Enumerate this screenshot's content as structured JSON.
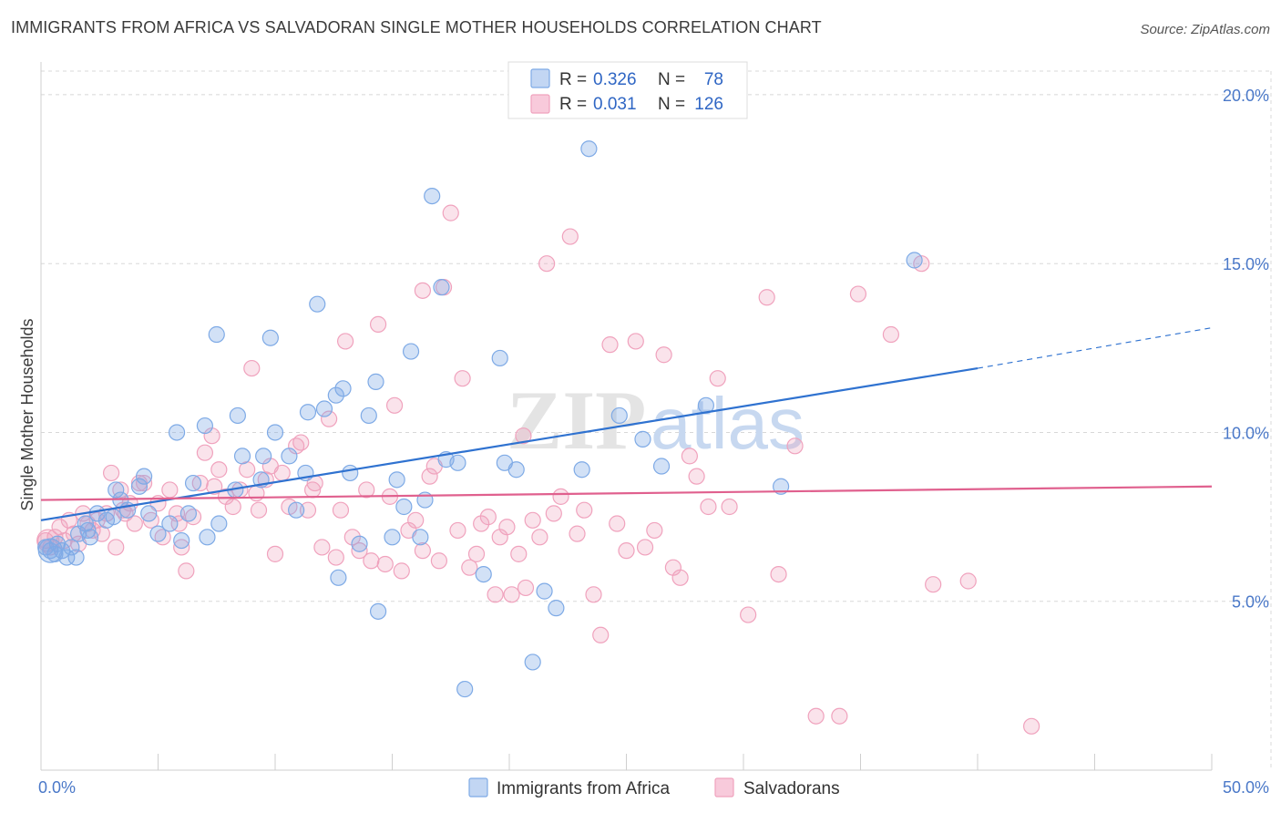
{
  "title": "IMMIGRANTS FROM AFRICA VS SALVADORAN SINGLE MOTHER HOUSEHOLDS CORRELATION CHART",
  "source": "Source: ZipAtlas.com",
  "watermark": {
    "left": "ZIP",
    "right": "atlas"
  },
  "colors": {
    "blue": "#7eaae6",
    "blue_line": "#2f72d0",
    "pink": "#f0a2bd",
    "pink_line": "#e0608e",
    "tick": "#4a78c8",
    "grid": "#d8d8d8"
  },
  "legend": {
    "r_label": "R =",
    "n_label": "N =",
    "rows": [
      {
        "r": "0.326",
        "n": "78"
      },
      {
        "r": "0.031",
        "n": "126"
      }
    ]
  },
  "chart_data": {
    "type": "scatter",
    "title": "IMMIGRANTS FROM AFRICA VS SALVADORAN SINGLE MOTHER HOUSEHOLDS CORRELATION CHART",
    "xlabel": "",
    "ylabel": "Single Mother Households",
    "xlim": [
      0,
      50
    ],
    "ylim": [
      0,
      20.7
    ],
    "x_tick_labels": [
      "0.0%",
      "50.0%"
    ],
    "y_ticks": [
      5,
      10,
      15,
      20
    ],
    "y_tick_labels": [
      "5.0%",
      "10.0%",
      "15.0%",
      "20.0%"
    ],
    "grid": true,
    "legend_position": "top-center",
    "series": [
      {
        "name": "Immigrants from Africa",
        "color": "#7eaae6",
        "r": 0.326,
        "n": 78,
        "trend": {
          "x0": 0,
          "y0": 7.4,
          "x1": 40,
          "y1": 11.9,
          "dash_to_x": 50,
          "dash_to_y": 13.1
        },
        "points": [
          [
            0.2,
            6.6
          ],
          [
            0.4,
            6.5
          ],
          [
            0.6,
            6.4
          ],
          [
            0.9,
            6.5
          ],
          [
            1.1,
            6.3
          ],
          [
            1.3,
            6.6
          ],
          [
            1.6,
            7.0
          ],
          [
            1.9,
            7.3
          ],
          [
            2.1,
            6.9
          ],
          [
            2.4,
            7.6
          ],
          [
            2.8,
            7.4
          ],
          [
            3.1,
            7.5
          ],
          [
            3.4,
            8.0
          ],
          [
            3.7,
            7.7
          ],
          [
            4.2,
            8.4
          ],
          [
            4.4,
            8.7
          ],
          [
            5.0,
            7.0
          ],
          [
            5.5,
            7.3
          ],
          [
            6.0,
            6.8
          ],
          [
            6.3,
            7.6
          ],
          [
            6.5,
            8.5
          ],
          [
            7.1,
            6.9
          ],
          [
            7.6,
            7.3
          ],
          [
            8.3,
            8.3
          ],
          [
            8.6,
            9.3
          ],
          [
            9.4,
            8.6
          ],
          [
            9.5,
            9.3
          ],
          [
            10.0,
            10.0
          ],
          [
            10.6,
            9.3
          ],
          [
            11.3,
            8.8
          ],
          [
            11.4,
            10.6
          ],
          [
            12.1,
            10.7
          ],
          [
            12.6,
            11.1
          ],
          [
            12.9,
            11.3
          ],
          [
            13.2,
            8.8
          ],
          [
            14.0,
            10.5
          ],
          [
            14.3,
            11.5
          ],
          [
            15.0,
            6.9
          ],
          [
            15.2,
            8.6
          ],
          [
            15.5,
            7.8
          ],
          [
            15.8,
            12.4
          ],
          [
            16.2,
            6.9
          ],
          [
            16.4,
            8.0
          ],
          [
            16.7,
            17.0
          ],
          [
            17.1,
            14.3
          ],
          [
            17.3,
            9.2
          ],
          [
            17.8,
            9.1
          ],
          [
            18.9,
            5.8
          ],
          [
            19.6,
            12.2
          ],
          [
            19.8,
            9.1
          ],
          [
            20.3,
            8.9
          ],
          [
            21.0,
            3.2
          ],
          [
            21.5,
            5.3
          ],
          [
            22.0,
            4.8
          ],
          [
            23.1,
            8.9
          ],
          [
            23.4,
            18.4
          ],
          [
            24.7,
            10.5
          ],
          [
            25.7,
            9.8
          ],
          [
            26.5,
            9.0
          ],
          [
            28.4,
            10.8
          ],
          [
            31.6,
            8.4
          ],
          [
            37.3,
            15.1
          ],
          [
            18.1,
            2.4
          ],
          [
            14.4,
            4.7
          ],
          [
            12.7,
            5.7
          ],
          [
            11.8,
            13.8
          ],
          [
            7.5,
            12.9
          ],
          [
            9.8,
            12.8
          ],
          [
            7.0,
            10.2
          ],
          [
            8.4,
            10.5
          ],
          [
            5.8,
            10.0
          ],
          [
            3.2,
            8.3
          ],
          [
            2.0,
            7.1
          ],
          [
            4.6,
            7.6
          ],
          [
            1.5,
            6.3
          ],
          [
            0.7,
            6.7
          ],
          [
            10.9,
            7.7
          ],
          [
            13.6,
            6.7
          ]
        ]
      },
      {
        "name": "Salvadorans",
        "color": "#f0a2bd",
        "r": 0.031,
        "n": 126,
        "trend": {
          "x0": 0,
          "y0": 8.0,
          "x1": 50,
          "y1": 8.4
        },
        "points": [
          [
            0.2,
            6.8
          ],
          [
            0.4,
            6.6
          ],
          [
            0.6,
            6.9
          ],
          [
            0.8,
            7.2
          ],
          [
            1.0,
            6.8
          ],
          [
            1.2,
            7.4
          ],
          [
            1.4,
            7.0
          ],
          [
            1.6,
            6.7
          ],
          [
            1.8,
            7.6
          ],
          [
            2.0,
            7.3
          ],
          [
            2.2,
            7.1
          ],
          [
            2.4,
            7.4
          ],
          [
            2.6,
            7.0
          ],
          [
            2.8,
            7.6
          ],
          [
            3.0,
            8.8
          ],
          [
            3.2,
            6.6
          ],
          [
            3.4,
            8.3
          ],
          [
            3.6,
            7.6
          ],
          [
            3.8,
            7.9
          ],
          [
            4.0,
            7.3
          ],
          [
            4.2,
            8.5
          ],
          [
            4.4,
            8.5
          ],
          [
            4.7,
            7.4
          ],
          [
            5.0,
            7.9
          ],
          [
            5.2,
            6.9
          ],
          [
            5.5,
            8.3
          ],
          [
            5.8,
            7.6
          ],
          [
            6.0,
            6.6
          ],
          [
            6.2,
            5.9
          ],
          [
            6.5,
            7.5
          ],
          [
            6.8,
            8.5
          ],
          [
            7.0,
            9.4
          ],
          [
            7.3,
            9.9
          ],
          [
            7.6,
            8.9
          ],
          [
            7.9,
            8.1
          ],
          [
            8.2,
            7.8
          ],
          [
            8.5,
            8.3
          ],
          [
            8.8,
            8.9
          ],
          [
            9.0,
            11.9
          ],
          [
            9.3,
            7.7
          ],
          [
            9.6,
            8.6
          ],
          [
            9.8,
            9.0
          ],
          [
            10.0,
            6.4
          ],
          [
            10.3,
            8.8
          ],
          [
            10.6,
            7.8
          ],
          [
            10.9,
            9.6
          ],
          [
            11.1,
            9.7
          ],
          [
            11.4,
            7.7
          ],
          [
            11.7,
            8.5
          ],
          [
            12.0,
            6.6
          ],
          [
            12.3,
            10.4
          ],
          [
            12.6,
            6.3
          ],
          [
            12.8,
            7.7
          ],
          [
            13.0,
            12.7
          ],
          [
            13.3,
            6.9
          ],
          [
            13.6,
            6.5
          ],
          [
            13.9,
            8.3
          ],
          [
            14.1,
            6.2
          ],
          [
            14.4,
            13.2
          ],
          [
            14.7,
            6.1
          ],
          [
            14.9,
            8.1
          ],
          [
            15.1,
            10.8
          ],
          [
            15.4,
            5.9
          ],
          [
            15.7,
            7.1
          ],
          [
            16.0,
            7.4
          ],
          [
            16.3,
            6.5
          ],
          [
            16.6,
            8.7
          ],
          [
            16.8,
            9.0
          ],
          [
            17.0,
            6.2
          ],
          [
            17.2,
            14.3
          ],
          [
            17.5,
            16.5
          ],
          [
            17.8,
            7.1
          ],
          [
            18.0,
            11.6
          ],
          [
            18.3,
            6.0
          ],
          [
            18.6,
            6.4
          ],
          [
            18.8,
            7.3
          ],
          [
            19.1,
            7.5
          ],
          [
            19.4,
            5.2
          ],
          [
            19.6,
            6.9
          ],
          [
            19.9,
            7.2
          ],
          [
            20.1,
            5.2
          ],
          [
            20.4,
            6.4
          ],
          [
            20.7,
            5.4
          ],
          [
            21.0,
            7.4
          ],
          [
            21.3,
            6.9
          ],
          [
            21.6,
            15.0
          ],
          [
            21.9,
            7.6
          ],
          [
            22.2,
            8.1
          ],
          [
            22.6,
            15.8
          ],
          [
            22.9,
            7.0
          ],
          [
            23.2,
            7.7
          ],
          [
            23.6,
            5.2
          ],
          [
            23.9,
            4.0
          ],
          [
            24.3,
            12.6
          ],
          [
            24.6,
            7.3
          ],
          [
            25.0,
            6.5
          ],
          [
            25.4,
            12.7
          ],
          [
            25.8,
            6.6
          ],
          [
            26.2,
            7.1
          ],
          [
            26.6,
            12.3
          ],
          [
            27.0,
            6.0
          ],
          [
            27.3,
            5.7
          ],
          [
            27.7,
            9.3
          ],
          [
            28.0,
            8.7
          ],
          [
            28.5,
            7.8
          ],
          [
            28.9,
            11.6
          ],
          [
            29.4,
            7.8
          ],
          [
            30.2,
            4.6
          ],
          [
            31.0,
            14.0
          ],
          [
            31.5,
            5.8
          ],
          [
            32.2,
            9.6
          ],
          [
            33.1,
            1.6
          ],
          [
            34.1,
            1.6
          ],
          [
            34.9,
            14.1
          ],
          [
            36.3,
            12.9
          ],
          [
            37.6,
            15.0
          ],
          [
            38.1,
            5.5
          ],
          [
            39.6,
            5.6
          ],
          [
            42.3,
            1.3
          ],
          [
            20.6,
            9.9
          ],
          [
            16.3,
            14.2
          ],
          [
            11.6,
            8.3
          ],
          [
            5.9,
            7.3
          ],
          [
            9.2,
            8.2
          ],
          [
            7.4,
            8.4
          ],
          [
            3.5,
            7.7
          ]
        ]
      }
    ]
  }
}
